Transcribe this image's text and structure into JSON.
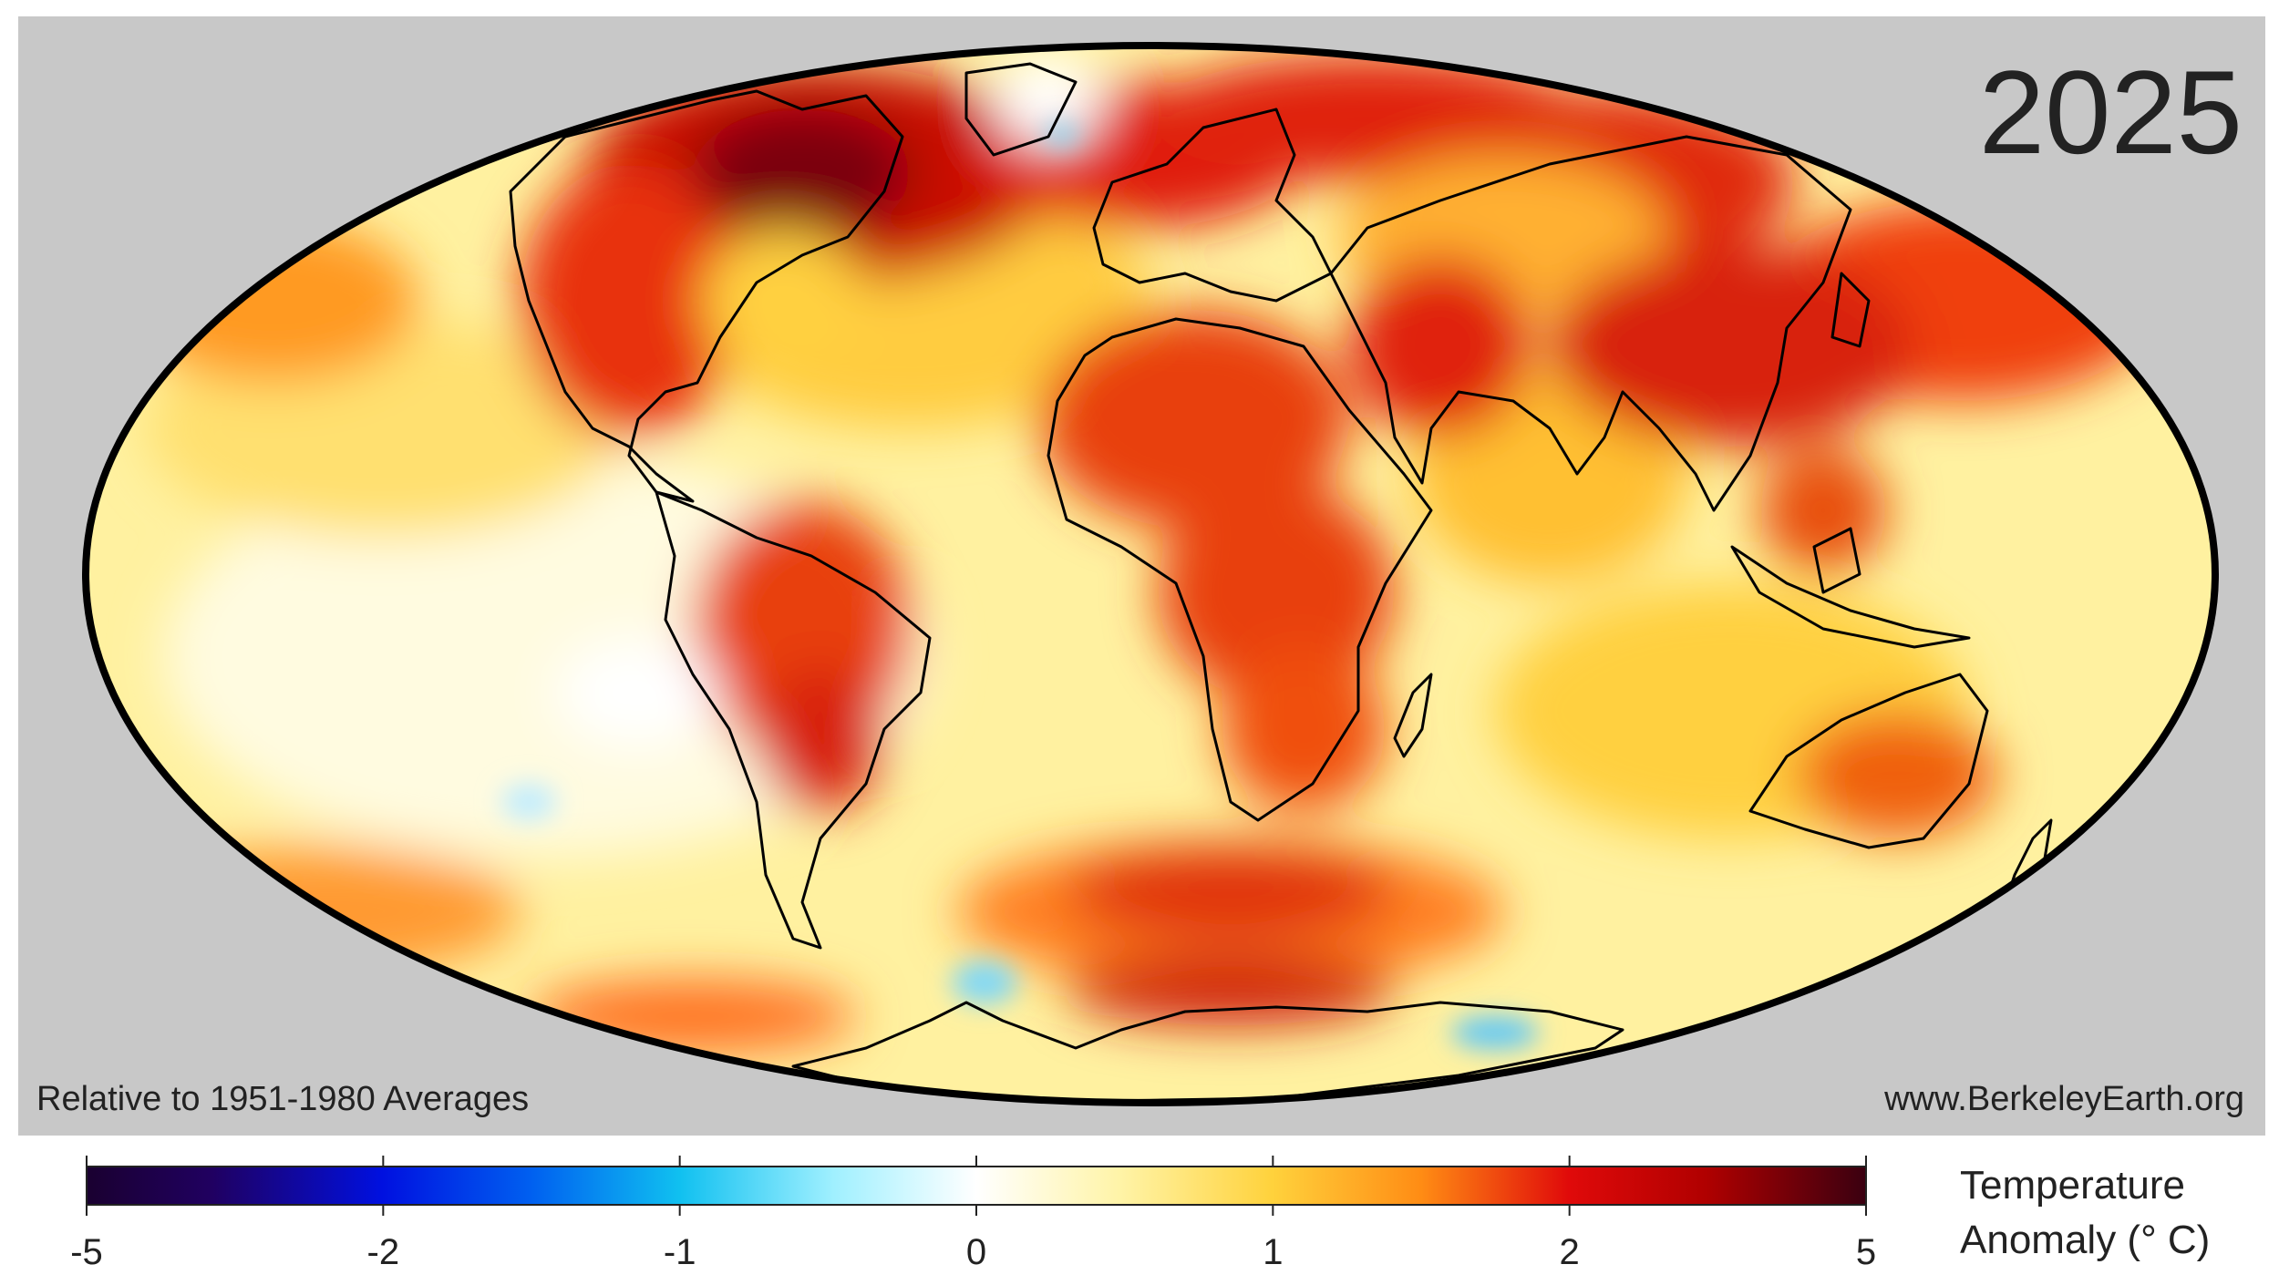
{
  "map": {
    "year": "2025",
    "projection": "mollweide",
    "reference_note": "Relative to 1951-1980 Averages",
    "source": "www.BerkeleyEarth.org",
    "background_color": "#c8c8c8",
    "ocean_base_color": "#fff1a0",
    "outline_color": "#000000"
  },
  "colorbar": {
    "tick_labels": [
      "-5",
      "-2",
      "-1",
      "0",
      "1",
      "2",
      "5"
    ],
    "title_line1": "Temperature",
    "title_line2": "Anomaly (° C)",
    "gradient_stops": [
      {
        "value": "-5",
        "color": "#1a0030"
      },
      {
        "value": "-4",
        "color": "#200060"
      },
      {
        "value": "-2",
        "color": "#0010e0"
      },
      {
        "value": "-1.5",
        "color": "#0060f0"
      },
      {
        "value": "-1",
        "color": "#10c0f0"
      },
      {
        "value": "-0.5",
        "color": "#a0f0ff"
      },
      {
        "value": "0",
        "color": "#ffffff"
      },
      {
        "value": "0.5",
        "color": "#fff4a8"
      },
      {
        "value": "1",
        "color": "#ffd23c"
      },
      {
        "value": "1.5",
        "color": "#ff8c14"
      },
      {
        "value": "2",
        "color": "#e00a0a"
      },
      {
        "value": "3",
        "color": "#b00000"
      },
      {
        "value": "5",
        "color": "#3a0010"
      }
    ]
  }
}
